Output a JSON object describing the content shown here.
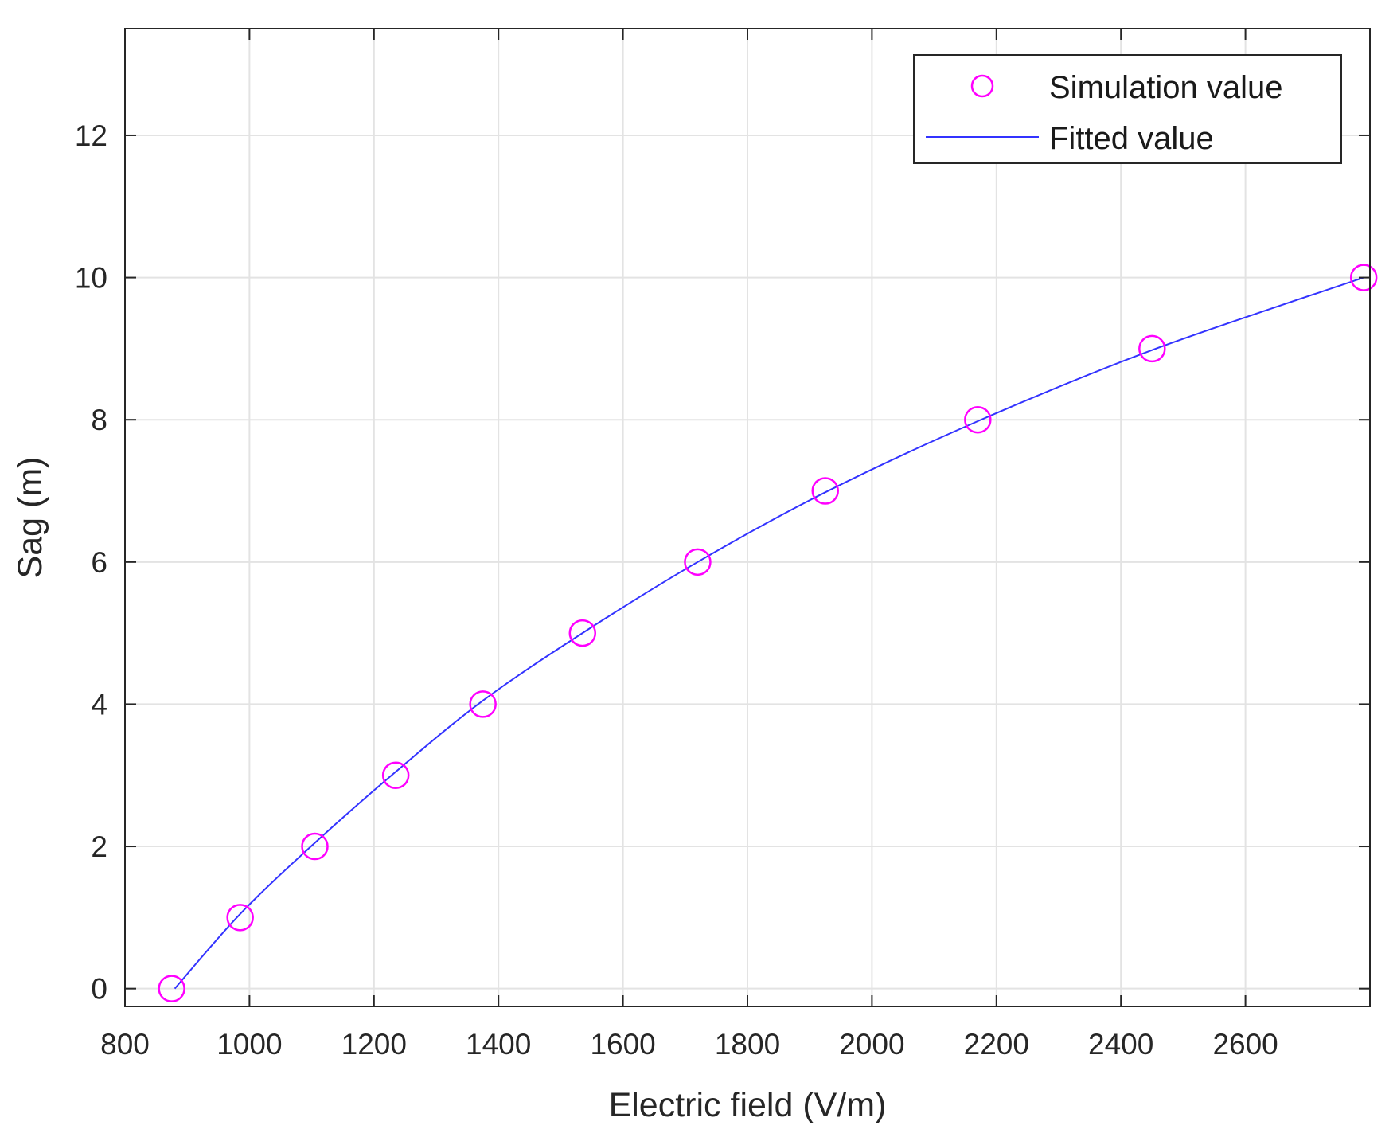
{
  "chart_data": {
    "type": "scatter",
    "xlabel": "Electric field (V/m)",
    "ylabel": "Sag (m)",
    "xlim": [
      800,
      2800
    ],
    "ylim": [
      -0.25,
      13.5
    ],
    "xticks": [
      800,
      1000,
      1200,
      1400,
      1600,
      1800,
      2000,
      2200,
      2400,
      2600
    ],
    "yticks": [
      0,
      2,
      4,
      6,
      8,
      10,
      12
    ],
    "grid": true,
    "legend_position": "top-right",
    "series": [
      {
        "name": "Simulation value",
        "kind": "markers",
        "marker": "circle",
        "color": "#ff00ff",
        "x": [
          875,
          985,
          1105,
          1235,
          1375,
          1535,
          1720,
          1925,
          2170,
          2450,
          2790
        ],
        "y": [
          0,
          1,
          2,
          3,
          4,
          5,
          6,
          7,
          8,
          9,
          10
        ]
      },
      {
        "name": "Fitted value",
        "kind": "line",
        "color": "#3333ff",
        "x": [
          880,
          985,
          1105,
          1235,
          1375,
          1535,
          1720,
          1925,
          2170,
          2450,
          2790
        ],
        "y": [
          0,
          1.05,
          2.05,
          3.05,
          4.05,
          5.0,
          6.0,
          6.98,
          7.98,
          8.98,
          10.0
        ]
      }
    ]
  }
}
